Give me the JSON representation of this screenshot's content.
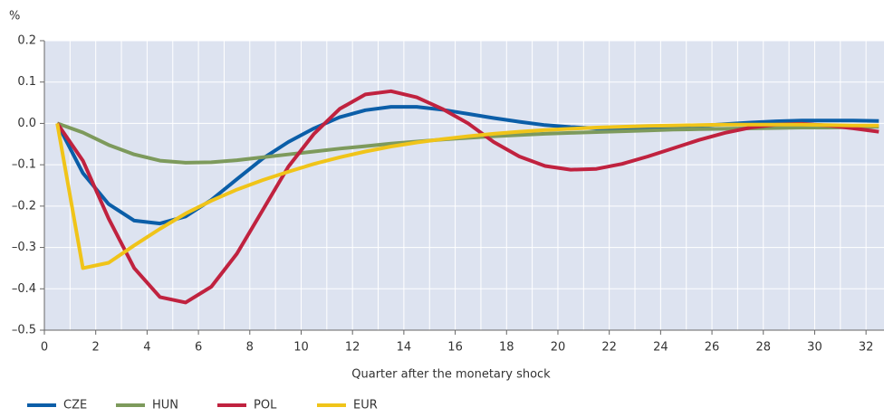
{
  "chart_data": {
    "type": "line",
    "y_unit": "%",
    "x_label": "Quarter after the monetary shock",
    "x": [
      0.5,
      1.5,
      2.5,
      3.5,
      4.5,
      5.5,
      6.5,
      7.5,
      8.5,
      9.5,
      10.5,
      11.5,
      12.5,
      13.5,
      14.5,
      15.5,
      16.5,
      17.5,
      18.5,
      19.5,
      20.5,
      21.5,
      22.5,
      23.5,
      24.5,
      25.5,
      26.5,
      27.5,
      28.5,
      29.5,
      30.5,
      31.5,
      32.5
    ],
    "series": [
      {
        "name": "CZE",
        "color": "#0b5ea8",
        "values": [
          0,
          -0.12,
          -0.195,
          -0.235,
          -0.242,
          -0.225,
          -0.185,
          -0.135,
          -0.085,
          -0.045,
          -0.012,
          0.015,
          0.032,
          0.04,
          0.04,
          0.033,
          0.023,
          0.013,
          0.004,
          -0.004,
          -0.009,
          -0.012,
          -0.012,
          -0.011,
          -0.009,
          -0.006,
          -0.002,
          0.002,
          0.005,
          0.007,
          0.007,
          0.007,
          0.006
        ]
      },
      {
        "name": "HUN",
        "color": "#7d9a5c",
        "values": [
          0,
          -0.022,
          -0.052,
          -0.075,
          -0.09,
          -0.095,
          -0.094,
          -0.089,
          -0.082,
          -0.075,
          -0.068,
          -0.061,
          -0.055,
          -0.049,
          -0.044,
          -0.039,
          -0.035,
          -0.031,
          -0.028,
          -0.025,
          -0.023,
          -0.021,
          -0.019,
          -0.017,
          -0.015,
          -0.014,
          -0.013,
          -0.012,
          -0.011,
          -0.01,
          -0.01,
          -0.009,
          -0.008
        ]
      },
      {
        "name": "POL",
        "color": "#c0223f",
        "values": [
          0,
          -0.09,
          -0.23,
          -0.35,
          -0.42,
          -0.433,
          -0.395,
          -0.315,
          -0.21,
          -0.105,
          -0.025,
          0.035,
          0.07,
          0.078,
          0.063,
          0.035,
          0,
          -0.045,
          -0.08,
          -0.103,
          -0.112,
          -0.11,
          -0.098,
          -0.08,
          -0.06,
          -0.04,
          -0.023,
          -0.01,
          -0.003,
          -0.001,
          -0.005,
          -0.012,
          -0.02
        ]
      },
      {
        "name": "EUR",
        "color": "#f0c419",
        "values": [
          0,
          -0.35,
          -0.337,
          -0.295,
          -0.255,
          -0.218,
          -0.187,
          -0.16,
          -0.137,
          -0.117,
          -0.098,
          -0.082,
          -0.068,
          -0.056,
          -0.046,
          -0.038,
          -0.031,
          -0.025,
          -0.02,
          -0.016,
          -0.013,
          -0.01,
          -0.008,
          -0.006,
          -0.005,
          -0.004,
          -0.003,
          -0.003,
          -0.003,
          -0.003,
          -0.004,
          -0.005,
          -0.005
        ]
      }
    ],
    "xlim": [
      0,
      32.7
    ],
    "xticks": [
      0,
      2,
      4,
      6,
      8,
      10,
      12,
      14,
      16,
      18,
      20,
      22,
      24,
      26,
      28,
      30,
      32
    ],
    "x_minor_ticks": [
      1,
      3,
      5,
      7,
      9,
      11,
      13,
      15,
      17,
      19,
      21,
      23,
      25,
      27,
      29,
      31
    ],
    "ylim": [
      -0.5,
      0.2
    ],
    "yticks": [
      0.2,
      0.1,
      {
        "value": 0,
        "label": "0.0"
      },
      {
        "value": -0.1,
        "label": "–0.1"
      },
      {
        "value": -0.2,
        "label": "–0.2"
      },
      {
        "value": -0.3,
        "label": "–0.3"
      },
      {
        "value": -0.4,
        "label": "–0.4"
      },
      {
        "value": -0.5,
        "label": "–0.5"
      }
    ],
    "grid": true,
    "plot_background": "#dde3f0"
  }
}
